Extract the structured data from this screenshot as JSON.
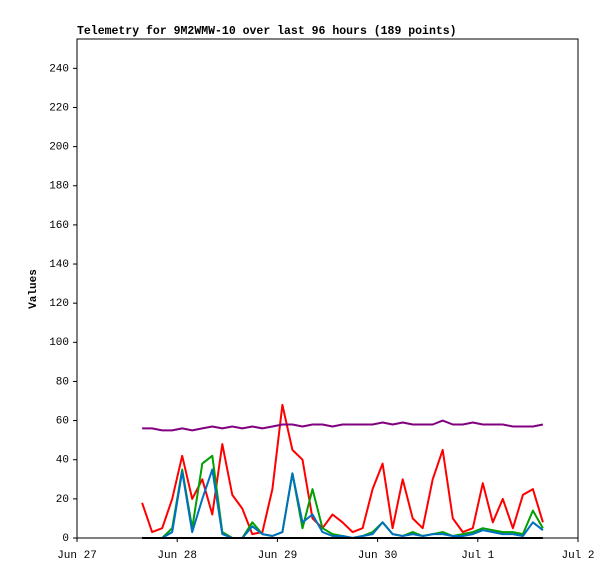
{
  "chart_data": {
    "type": "line",
    "title": "Telemetry for 9M2WMW-10 over last 96 hours (189 points)",
    "y_label": "Values",
    "x": [
      0.65,
      0.75,
      0.85,
      0.95,
      1.05,
      1.15,
      1.25,
      1.35,
      1.45,
      1.55,
      1.65,
      1.75,
      1.85,
      1.95,
      2.05,
      2.15,
      2.25,
      2.35,
      2.45,
      2.55,
      2.65,
      2.75,
      2.85,
      2.95,
      3.05,
      3.15,
      3.25,
      3.35,
      3.45,
      3.55,
      3.65,
      3.75,
      3.85,
      3.95,
      4.05,
      4.15,
      4.25,
      4.35,
      4.45,
      4.55,
      4.65
    ],
    "xlim": [
      0,
      5
    ],
    "xticks": [
      {
        "value": 0,
        "label": "Jun 27"
      },
      {
        "value": 1,
        "label": "Jun 28"
      },
      {
        "value": 2,
        "label": "Jun 29"
      },
      {
        "value": 3,
        "label": "Jun 30"
      },
      {
        "value": 4,
        "label": "Jul 1"
      },
      {
        "value": 5,
        "label": "Jul 2"
      }
    ],
    "ylim": [
      0,
      255
    ],
    "yticks": [
      0,
      20,
      40,
      60,
      80,
      100,
      120,
      140,
      160,
      180,
      200,
      220,
      240
    ],
    "series": [
      {
        "color": "#ff0000",
        "values": [
          18,
          3,
          5,
          20,
          42,
          20,
          30,
          12,
          48,
          22,
          15,
          2,
          3,
          25,
          68,
          45,
          40,
          10,
          5,
          12,
          8,
          3,
          5,
          25,
          38,
          5,
          30,
          10,
          5,
          30,
          45,
          10,
          3,
          5,
          28,
          8,
          20,
          5,
          22,
          25,
          8
        ]
      },
      {
        "color": "#00a000",
        "values": [
          0,
          0,
          0,
          5,
          35,
          5,
          38,
          42,
          3,
          0,
          0,
          8,
          2,
          1,
          3,
          33,
          5,
          25,
          5,
          2,
          1,
          0,
          1,
          3,
          8,
          2,
          1,
          3,
          1,
          2,
          3,
          1,
          2,
          3,
          5,
          4,
          3,
          3,
          2,
          14,
          5
        ]
      },
      {
        "color": "#0070c0",
        "values": [
          0,
          0,
          0,
          3,
          34,
          3,
          20,
          35,
          2,
          0,
          0,
          6,
          2,
          1,
          3,
          33,
          8,
          12,
          3,
          1,
          1,
          0,
          1,
          2,
          8,
          2,
          1,
          2,
          1,
          2,
          2,
          1,
          1,
          2,
          4,
          3,
          2,
          2,
          1,
          8,
          4
        ]
      },
      {
        "color": "#800080",
        "values": [
          56,
          56,
          55,
          55,
          56,
          55,
          56,
          57,
          56,
          57,
          56,
          57,
          56,
          57,
          58,
          58,
          57,
          58,
          58,
          57,
          58,
          58,
          58,
          58,
          59,
          58,
          59,
          58,
          58,
          58,
          60,
          58,
          58,
          59,
          58,
          58,
          58,
          57,
          57,
          57,
          58
        ]
      },
      {
        "color": "#000000",
        "values": [
          0,
          0,
          0,
          0,
          0,
          0,
          0,
          0,
          0,
          0,
          0,
          0,
          0,
          0,
          0,
          0,
          0,
          0,
          0,
          0,
          0,
          0,
          0,
          0,
          0,
          0,
          0,
          0,
          0,
          0,
          0,
          0,
          0,
          0,
          0,
          0,
          0,
          0,
          0,
          0,
          0
        ]
      }
    ]
  }
}
